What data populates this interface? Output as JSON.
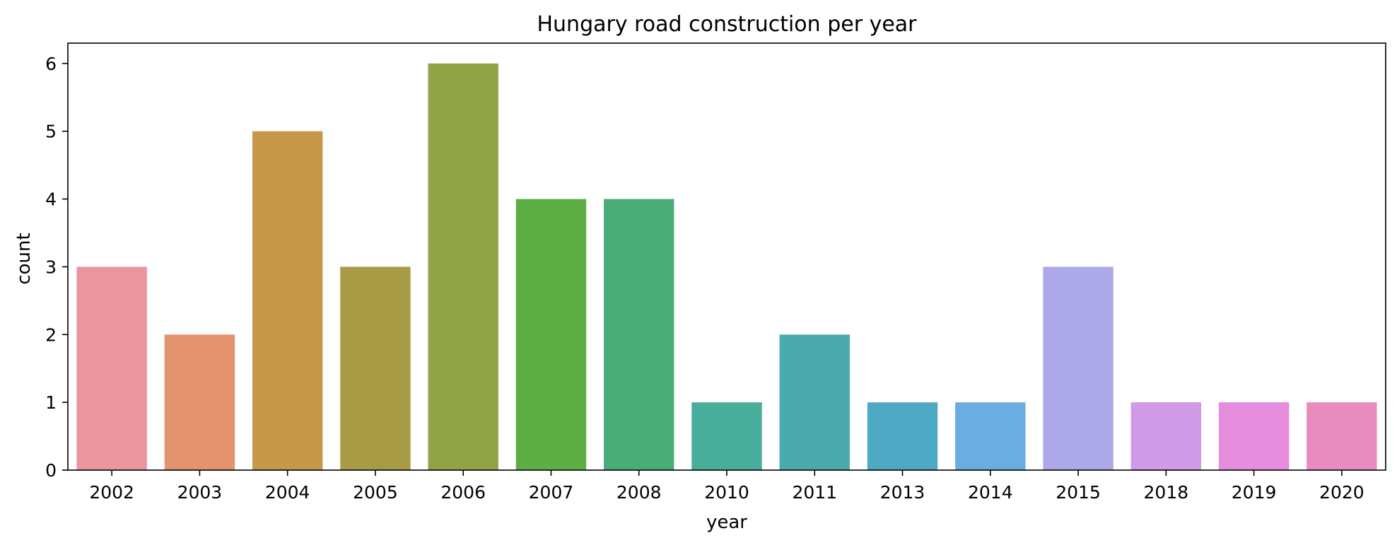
{
  "chart_data": {
    "type": "bar",
    "title": "Hungary road construction per year",
    "xlabel": "year",
    "ylabel": "count",
    "categories": [
      "2002",
      "2003",
      "2004",
      "2005",
      "2006",
      "2007",
      "2008",
      "2010",
      "2011",
      "2013",
      "2014",
      "2015",
      "2018",
      "2019",
      "2020"
    ],
    "values": [
      3,
      2,
      5,
      3,
      6,
      4,
      4,
      1,
      2,
      1,
      1,
      3,
      1,
      1,
      1
    ],
    "colors": [
      "#ea96a0",
      "#e4936f",
      "#c69849",
      "#a89b45",
      "#91a445",
      "#5eae46",
      "#49ad7a",
      "#48ad9b",
      "#4aaaae",
      "#4eaac4",
      "#6aaee1",
      "#ada9e9",
      "#cf9ae6",
      "#e68cdd",
      "#e88cbe"
    ],
    "ylim": [
      0,
      6.3
    ],
    "yticks": [
      "0",
      "1",
      "2",
      "3",
      "4",
      "5",
      "6"
    ],
    "grid": false,
    "legend": "none"
  }
}
